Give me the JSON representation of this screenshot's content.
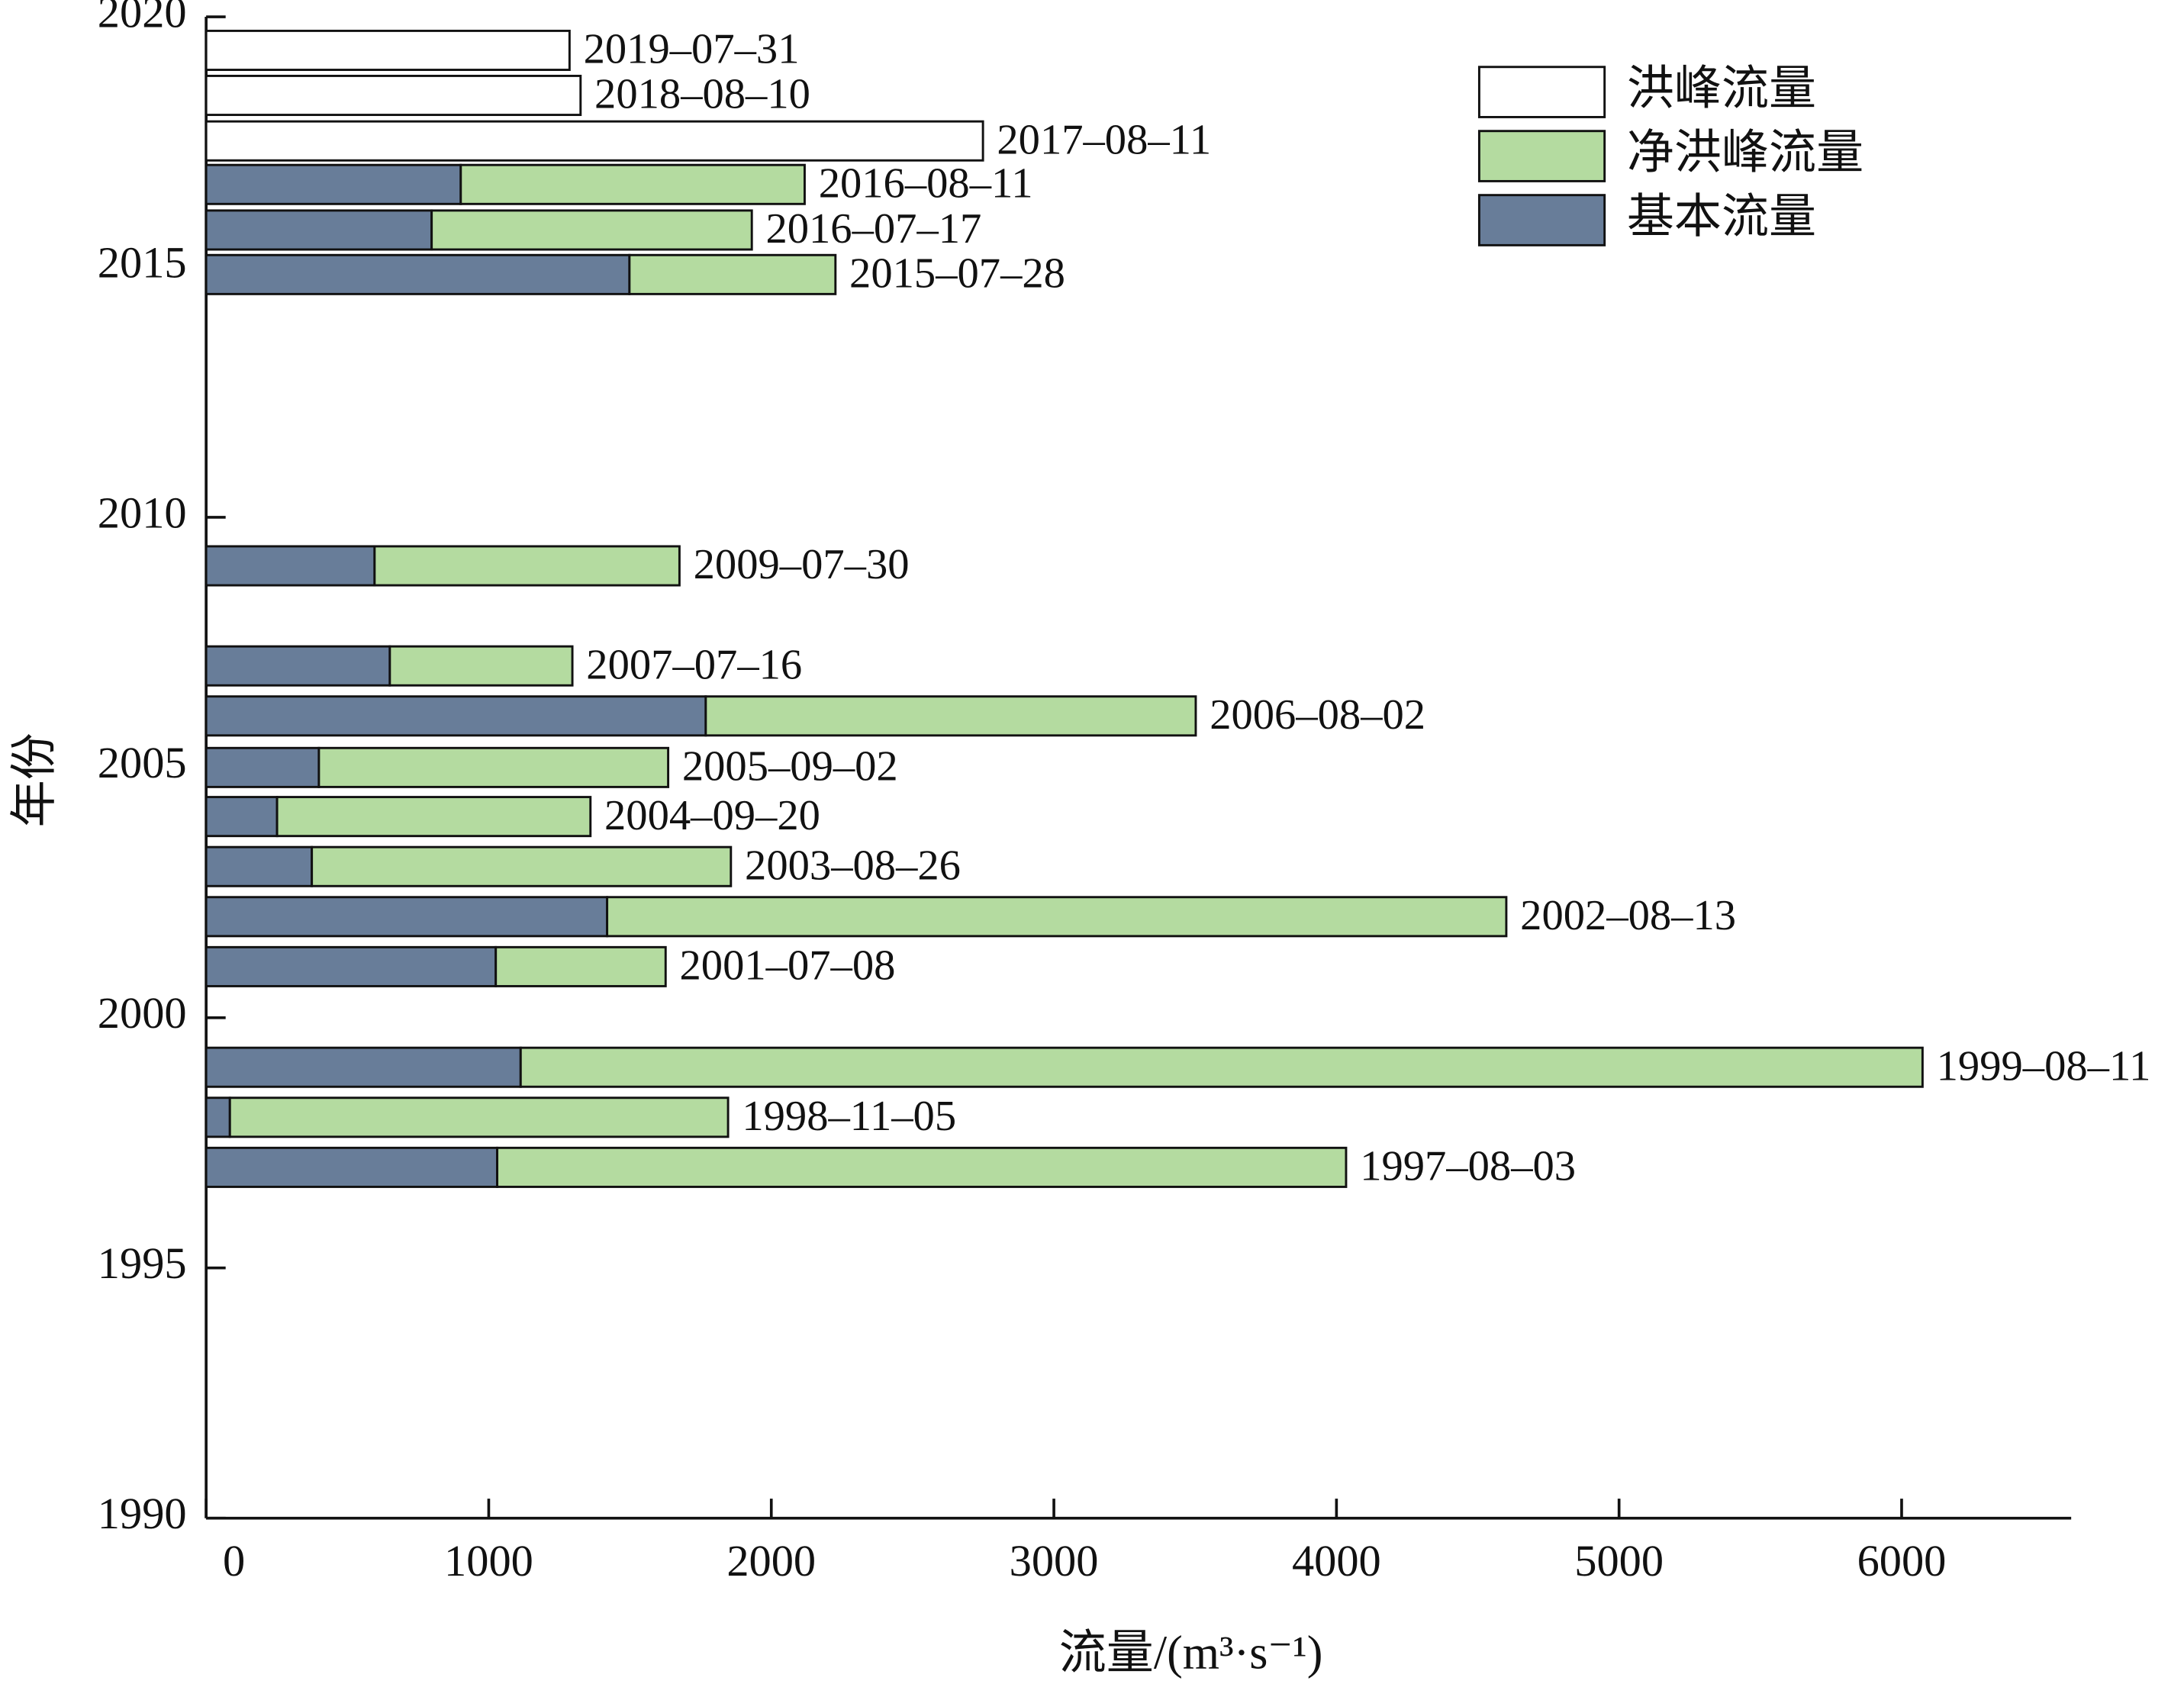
{
  "chart_data": {
    "type": "bar",
    "orientation": "horizontal",
    "stacked": true,
    "x_label": "流量/(m³·s⁻¹)",
    "y_label": "年份",
    "categories": [
      "2019–07–31",
      "2018–08–10",
      "2017–08–11",
      "2016–08–11",
      "2016–07–17",
      "2015–07–28",
      "2009–07–30",
      "2007–07–16",
      "2006–08–02",
      "2005–09–02",
      "2004–09–20",
      "2003–08–26",
      "2002–08–13",
      "2001–07–08",
      "1999–08–11",
      "1998–11–05",
      "1997–08–03"
    ],
    "y": [
      2019.33,
      2018.43,
      2017.52,
      2016.65,
      2015.74,
      2014.85,
      2009.03,
      2007.03,
      2006.03,
      2005.0,
      2004.02,
      2003.02,
      2002.02,
      2001.02,
      1999.01,
      1998.01,
      1997.01
    ],
    "series": [
      {
        "name": "基本流量",
        "color": "#687d99",
        "values": [
          null,
          null,
          null,
          901,
          798,
          1498,
          596,
          650,
          1768,
          399,
          251,
          374,
          1419,
          1025,
          1113,
          84,
          1030
        ]
      },
      {
        "name": "净洪峰流量",
        "color": "#b4dba0",
        "values": [
          null,
          null,
          null,
          1217,
          1133,
          729,
          1079,
          646,
          1734,
          1236,
          1109,
          1483,
          3182,
          601,
          4961,
          1763,
          3004
        ]
      },
      {
        "name": "洪峰流量",
        "color": "#ffffff",
        "values": [
          1286,
          1325,
          2749,
          null,
          null,
          null,
          null,
          null,
          null,
          null,
          null,
          null,
          null,
          null,
          null,
          null,
          null
        ]
      }
    ],
    "xlim": [
      0,
      6600
    ],
    "xticks": [
      0,
      1000,
      2000,
      3000,
      4000,
      5000,
      6000
    ],
    "ylim": [
      1990,
      2020
    ],
    "yticks": [
      1990,
      1995,
      2000,
      2005,
      2010,
      2015,
      2020
    ],
    "legend": "top-right"
  }
}
